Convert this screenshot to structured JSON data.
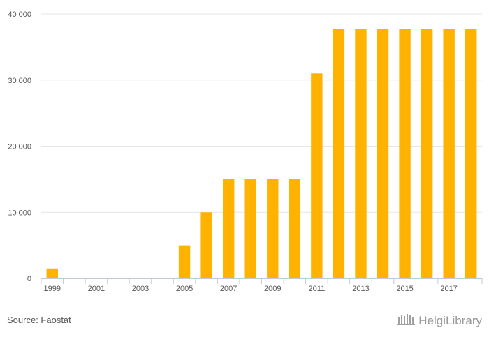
{
  "chart_data": {
    "type": "bar",
    "categories": [
      "1999",
      "2000",
      "2001",
      "2002",
      "2003",
      "2004",
      "2005",
      "2006",
      "2007",
      "2008",
      "2009",
      "2010",
      "2011",
      "2012",
      "2013",
      "2014",
      "2015",
      "2016",
      "2017",
      "2018"
    ],
    "values": [
      1500,
      0,
      0,
      0,
      0,
      0,
      5000,
      10000,
      15000,
      15000,
      15000,
      15000,
      31000,
      37700,
      37700,
      37700,
      37700,
      37700,
      37700,
      37700
    ],
    "x_tick_labels": [
      "1999",
      "2001",
      "2003",
      "2005",
      "2007",
      "2009",
      "2011",
      "2013",
      "2015",
      "2017"
    ],
    "y_ticks": [
      0,
      10000,
      20000,
      30000,
      40000
    ],
    "y_tick_labels": [
      "0",
      "10 000",
      "20 000",
      "30 000",
      "40 000"
    ],
    "ylim": [
      0,
      40000
    ],
    "title": "",
    "xlabel": "",
    "ylabel": "",
    "grid": true,
    "bar_color": "#FFB300",
    "grid_color": "#e6e6e6"
  },
  "footer": {
    "source": "Source: Faostat",
    "brand": "HelgiLibrary",
    "brand_icon": "library-logo-icon"
  }
}
